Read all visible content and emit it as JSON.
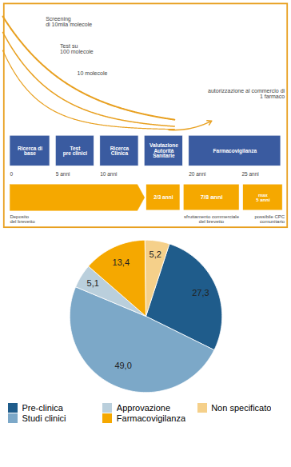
{
  "chart_data": [
    {
      "type": "diagram",
      "annotations": [
        "Screening\ndi 10mila molecole",
        "Test su\n100 molecole",
        "10 molecole",
        "autorizzazione al commercio di\n1 farmaco",
        "Ricerca di\nbase",
        "Test\npre clinici",
        "Ricerca\nClinica",
        "Valutazione\nAutorità\nSanitarie",
        "Farmacovigilanza",
        "0",
        "5 anni",
        "10 anni",
        "20 anni",
        "25 anni",
        "2/3 anni",
        "7/8 anni",
        "max\n5 anni",
        "Deposito\ndel brevetto",
        "sfruttamento commerciale\ndel brevetto",
        "possibile CPC\ncomunitario"
      ],
      "colors": [
        "#E8A020",
        "#3A5BA0",
        "#F5A800"
      ]
    },
    {
      "type": "pie",
      "categories": [
        "Pre-clinica",
        "Studi clinici",
        "Approvazione",
        "Farmacovigilanza",
        "Non specificato"
      ],
      "values": [
        27.3,
        49.0,
        5.1,
        13.4,
        5.2
      ],
      "value_labels": [
        "27,3",
        "49,0",
        "5,1",
        "13,4",
        "5,2"
      ],
      "colors": [
        "#1F5C8B",
        "#7CA8C8",
        "#BACFDC",
        "#F5A800",
        "#F5D08A"
      ],
      "data_labels": true,
      "legend": "bottom"
    }
  ]
}
